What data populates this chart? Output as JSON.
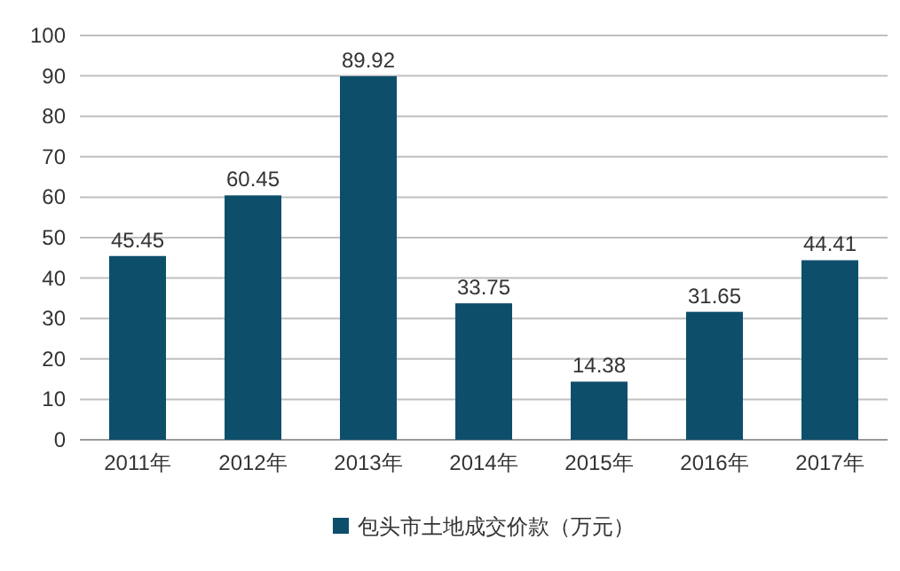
{
  "chart_data": {
    "type": "bar",
    "categories": [
      "2011年",
      "2012年",
      "2013年",
      "2014年",
      "2015年",
      "2016年",
      "2017年"
    ],
    "series": [
      {
        "name": "包头市土地成交价款（万元）",
        "color": "#0d4f6b",
        "values": [
          45.45,
          60.45,
          89.92,
          33.75,
          14.38,
          31.65,
          44.41
        ]
      }
    ],
    "ylim": [
      0,
      100
    ],
    "yticks": [
      0,
      10,
      20,
      30,
      40,
      50,
      60,
      70,
      80,
      90,
      100
    ],
    "grid": "y",
    "data_labels": true,
    "legend": "bottom"
  }
}
